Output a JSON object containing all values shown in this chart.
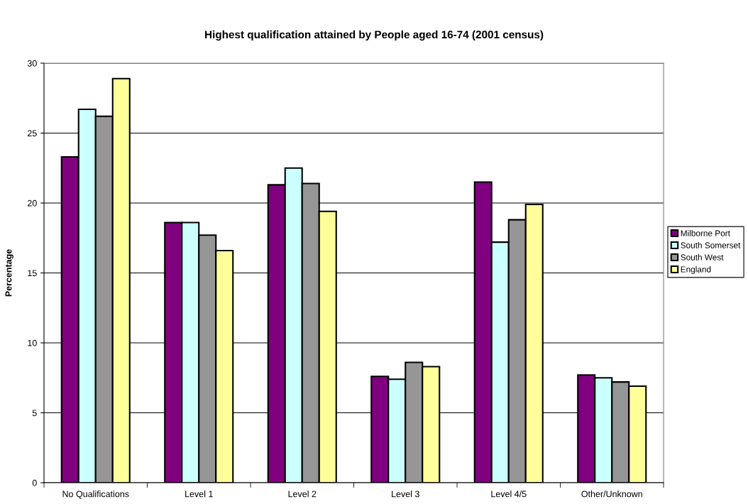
{
  "chart_data": {
    "type": "bar",
    "title": "Highest qualification attained by People aged 16-74 (2001 census)",
    "ylabel": "Percentage",
    "categories": [
      "No Qualifications",
      "Level 1",
      "Level 2",
      "Level 3",
      "Level 4/5",
      "Other/Unknown"
    ],
    "series": [
      {
        "name": "Milborne Port",
        "color": "#800080",
        "values": [
          23.3,
          18.6,
          21.3,
          7.6,
          21.5,
          7.7
        ]
      },
      {
        "name": "South Somerset",
        "color": "#ccffff",
        "values": [
          26.7,
          18.6,
          22.5,
          7.4,
          17.2,
          7.5
        ]
      },
      {
        "name": "South West",
        "color": "#969696",
        "values": [
          26.2,
          17.7,
          21.4,
          8.6,
          18.8,
          7.2
        ]
      },
      {
        "name": "England",
        "color": "#ffff99",
        "values": [
          28.9,
          16.6,
          19.4,
          8.3,
          19.9,
          6.9
        ]
      }
    ],
    "ylim": [
      0,
      30
    ],
    "yticks": [
      0,
      5,
      10,
      15,
      20,
      25,
      30
    ],
    "grid": "y",
    "legend": "right"
  }
}
